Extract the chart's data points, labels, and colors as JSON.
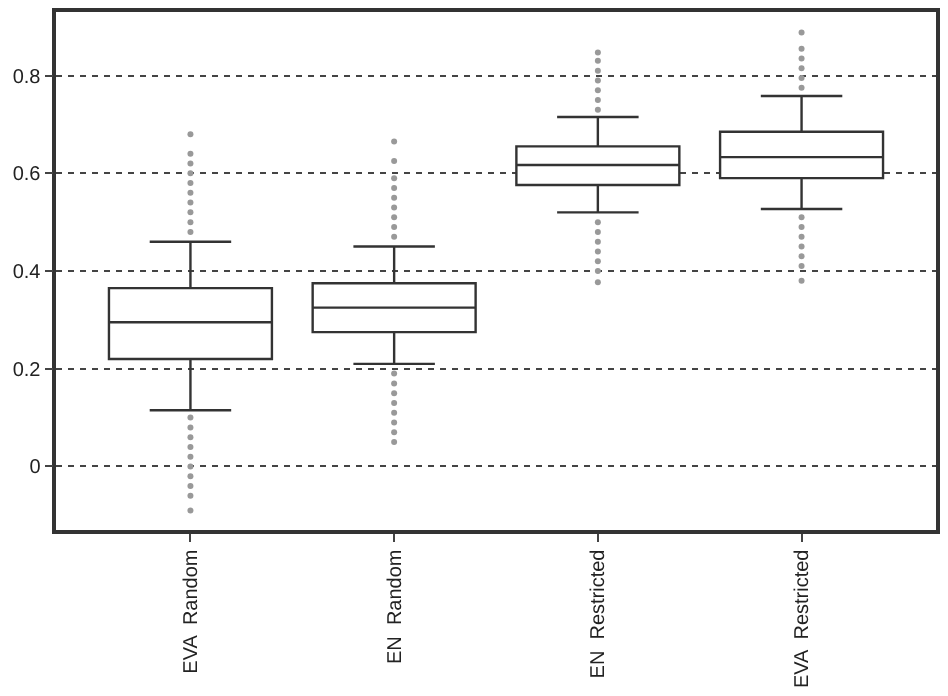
{
  "chart_data": {
    "type": "box",
    "categories": [
      "EVA  Random",
      "EN  Random",
      "EN  Restricted",
      "EVA  Restricted"
    ],
    "boxes": [
      {
        "low": 0.115,
        "q1": 0.22,
        "median": 0.295,
        "q3": 0.365,
        "high": 0.46,
        "outliers": [
          0.48,
          0.5,
          0.52,
          0.54,
          0.56,
          0.58,
          0.6,
          0.62,
          0.64,
          0.68,
          0.1,
          0.08,
          0.06,
          0.04,
          0.02,
          0.0,
          -0.02,
          -0.04,
          -0.06,
          -0.09
        ]
      },
      {
        "low": 0.21,
        "q1": 0.275,
        "median": 0.325,
        "q3": 0.375,
        "high": 0.45,
        "outliers": [
          0.47,
          0.49,
          0.51,
          0.53,
          0.55,
          0.57,
          0.59,
          0.625,
          0.665,
          0.19,
          0.17,
          0.15,
          0.13,
          0.11,
          0.09,
          0.07,
          0.05
        ]
      },
      {
        "low": 0.52,
        "q1": 0.576,
        "median": 0.617,
        "q3": 0.655,
        "high": 0.715,
        "outliers": [
          0.73,
          0.75,
          0.77,
          0.79,
          0.81,
          0.83,
          0.847,
          0.5,
          0.48,
          0.46,
          0.44,
          0.42,
          0.4,
          0.377
        ]
      },
      {
        "low": 0.527,
        "q1": 0.59,
        "median": 0.633,
        "q3": 0.685,
        "high": 0.758,
        "outliers": [
          0.775,
          0.795,
          0.815,
          0.835,
          0.855,
          0.888,
          0.51,
          0.49,
          0.47,
          0.45,
          0.43,
          0.41,
          0.38
        ]
      }
    ],
    "color": "#333333",
    "ylim": [
      -0.13,
      0.93
    ],
    "yticks": [
      0,
      0.2,
      0.4,
      0.6,
      0.8
    ],
    "grid": "y"
  }
}
